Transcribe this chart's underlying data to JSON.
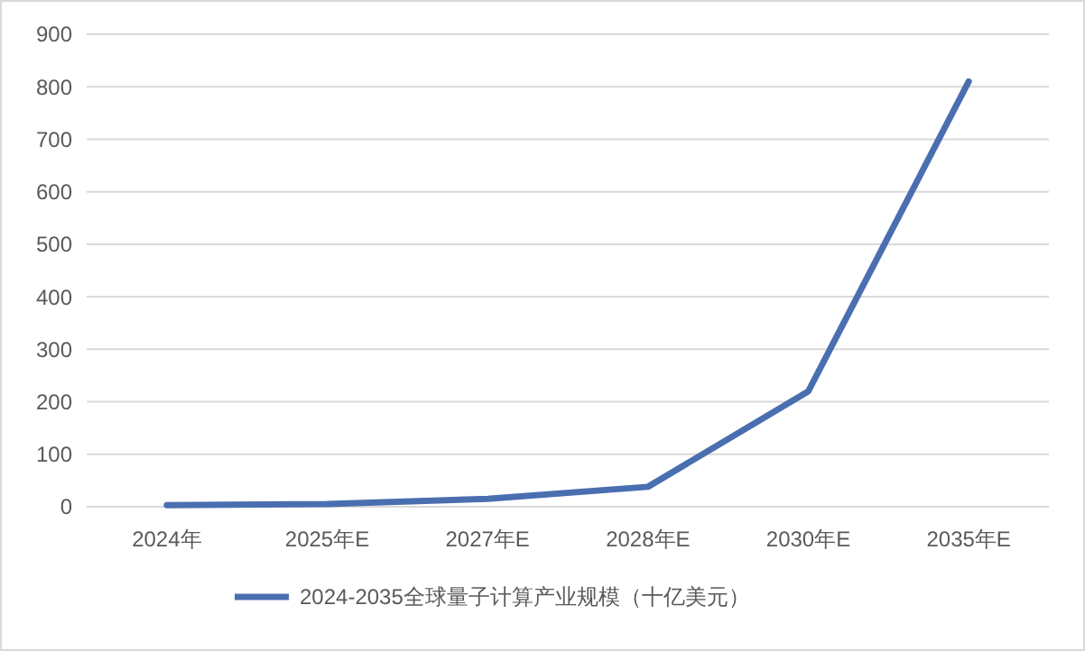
{
  "chart_data": {
    "type": "line",
    "categories": [
      "2024年",
      "2025年E",
      "2027年E",
      "2028年E",
      "2030年E",
      "2035年E"
    ],
    "series": [
      {
        "name": "2024-2035全球量子计算产业规模（十亿美元）",
        "color": "#4a6fb0",
        "values": [
          3,
          5,
          15,
          38,
          220,
          810
        ]
      }
    ],
    "ylim": [
      0,
      900
    ],
    "yticks": [
      0,
      100,
      200,
      300,
      400,
      500,
      600,
      700,
      800,
      900
    ],
    "grid": "y",
    "legend": "bottom",
    "marker": "none",
    "line_style": "solid"
  }
}
